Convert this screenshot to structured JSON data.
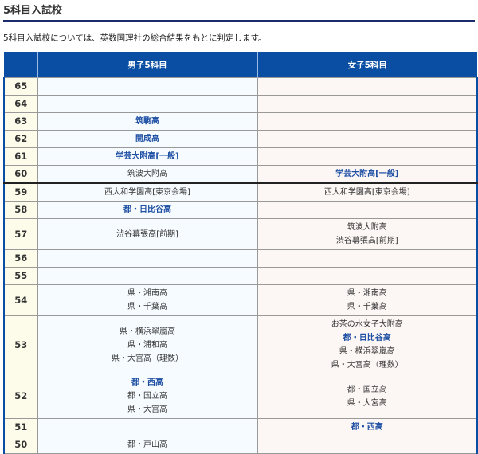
{
  "title": "5科目入試校",
  "description": "5科目入試校については、英数国理社の総合結果をもとに判定します。",
  "table": {
    "headers": [
      "",
      "男子5科目",
      "女子5科目"
    ],
    "rows": [
      {
        "score": "65",
        "boys": [],
        "girls": []
      },
      {
        "score": "64",
        "boys": [],
        "girls": []
      },
      {
        "score": "63",
        "boys": [
          {
            "text": "筑駒高",
            "link": true
          }
        ],
        "girls": []
      },
      {
        "score": "62",
        "boys": [
          {
            "text": "開成高",
            "link": true
          }
        ],
        "girls": []
      },
      {
        "score": "61",
        "boys": [
          {
            "text": "学芸大附高[一般]",
            "link": true
          }
        ],
        "girls": []
      },
      {
        "score": "60",
        "separator": true,
        "boys": [
          {
            "text": "筑波大附高",
            "link": false
          }
        ],
        "girls": [
          {
            "text": "学芸大附高[一般]",
            "link": true
          }
        ]
      },
      {
        "score": "59",
        "boys": [
          {
            "text": "西大和学園高[東京会場]",
            "link": false
          }
        ],
        "girls": [
          {
            "text": "西大和学園高[東京会場]",
            "link": false
          }
        ]
      },
      {
        "score": "58",
        "boys": [
          {
            "text": "都・日比谷高",
            "link": true
          }
        ],
        "girls": []
      },
      {
        "score": "57",
        "boys": [
          {
            "text": "渋谷幕張高[前期]",
            "link": false
          }
        ],
        "girls": [
          {
            "text": "筑波大附高",
            "link": false
          },
          {
            "text": "渋谷幕張高[前期]",
            "link": false
          }
        ]
      },
      {
        "score": "56",
        "boys": [],
        "girls": []
      },
      {
        "score": "55",
        "boys": [],
        "girls": []
      },
      {
        "score": "54",
        "boys": [
          {
            "text": "県・湘南高",
            "link": false
          },
          {
            "text": "県・千葉高",
            "link": false
          }
        ],
        "girls": [
          {
            "text": "県・湘南高",
            "link": false
          },
          {
            "text": "県・千葉高",
            "link": false
          }
        ]
      },
      {
        "score": "53",
        "boys": [
          {
            "text": "県・横浜翠嵐高",
            "link": false
          },
          {
            "text": "県・浦和高",
            "link": false
          },
          {
            "text": "県・大宮高（理数）",
            "link": false
          }
        ],
        "girls": [
          {
            "text": "お茶の水女子大附高",
            "link": false
          },
          {
            "text": "都・日比谷高",
            "link": true
          },
          {
            "text": "県・横浜翠嵐高",
            "link": false
          },
          {
            "text": "県・大宮高（理数）",
            "link": false
          }
        ]
      },
      {
        "score": "52",
        "boys": [
          {
            "text": "都・西高",
            "link": true
          },
          {
            "text": "都・国立高",
            "link": false
          },
          {
            "text": "県・大宮高",
            "link": false
          }
        ],
        "girls": [
          {
            "text": "都・国立高",
            "link": false
          },
          {
            "text": "県・大宮高",
            "link": false
          }
        ]
      },
      {
        "score": "51",
        "boys": [],
        "girls": [
          {
            "text": "都・西高",
            "link": true
          }
        ]
      },
      {
        "score": "50",
        "boys": [
          {
            "text": "都・戸山高",
            "link": false
          }
        ],
        "girls": []
      }
    ]
  }
}
